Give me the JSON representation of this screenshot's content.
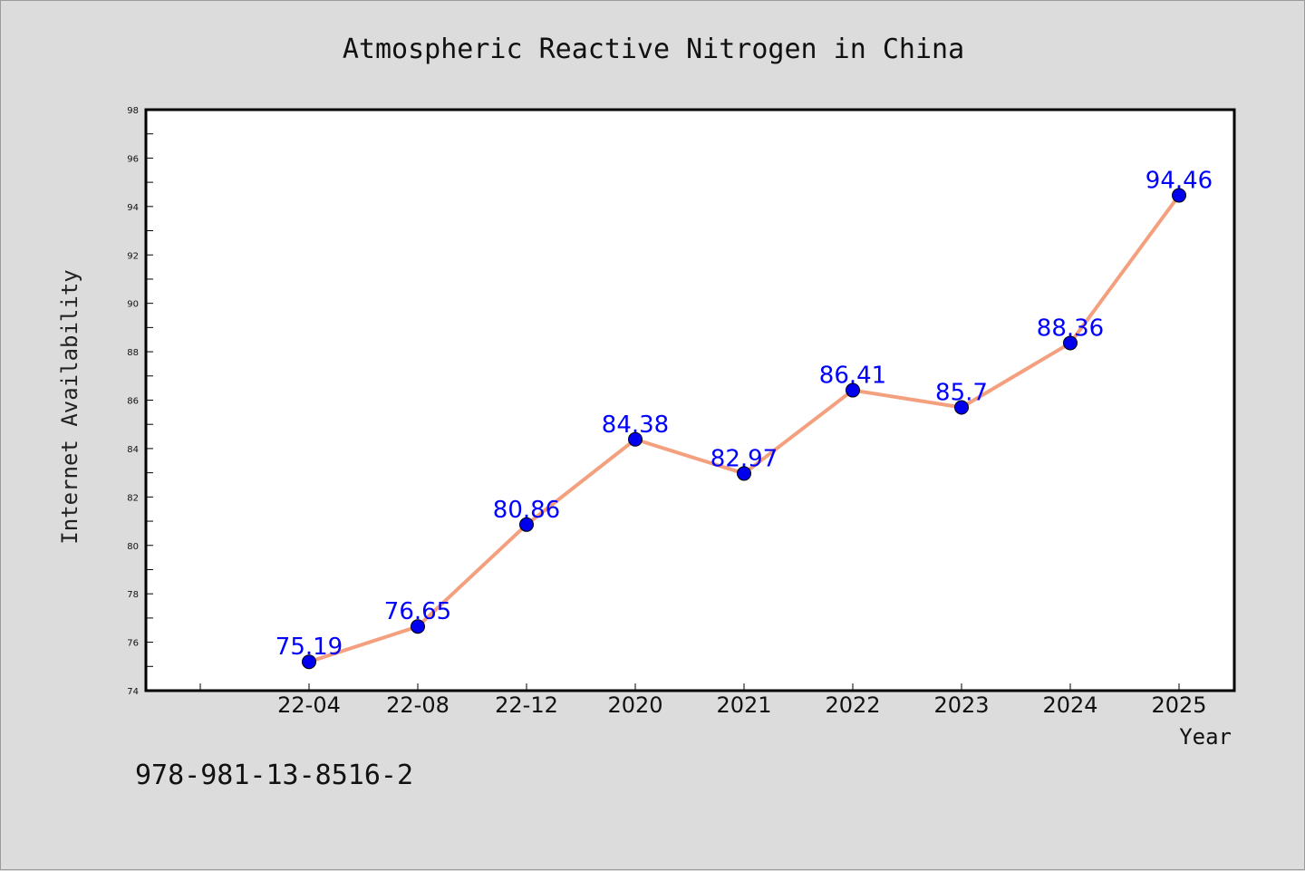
{
  "chart_data": {
    "type": "line",
    "title": "Atmospheric Reactive Nitrogen in China",
    "xlabel": "Year",
    "ylabel": "Internet Availability",
    "categories": [
      "22-04",
      "22-08",
      "22-12",
      "2020",
      "2021",
      "2022",
      "2023",
      "2024",
      "2025"
    ],
    "series": [
      {
        "values": [
          75.19,
          76.65,
          80.86,
          84.38,
          82.97,
          86.41,
          85.7,
          88.36,
          94.46
        ]
      }
    ],
    "data_labels": [
      "75.19",
      "76.65",
      "80.86",
      "84.38",
      "82.97",
      "86.41",
      "85.7",
      "88.36",
      "94.46"
    ],
    "ylim": [
      74,
      98
    ],
    "yticks": [
      74,
      76,
      78,
      80,
      82,
      84,
      86,
      88,
      90,
      92,
      94,
      96,
      98
    ],
    "grid": false,
    "colors": {
      "line": "#f4a07e",
      "marker": "#0000ee",
      "label": "#0000ff",
      "axis": "#000000",
      "plot_bg": "#ffffff",
      "page_bg": "#dcdcdc"
    }
  },
  "footnote": "978-981-13-8516-2"
}
